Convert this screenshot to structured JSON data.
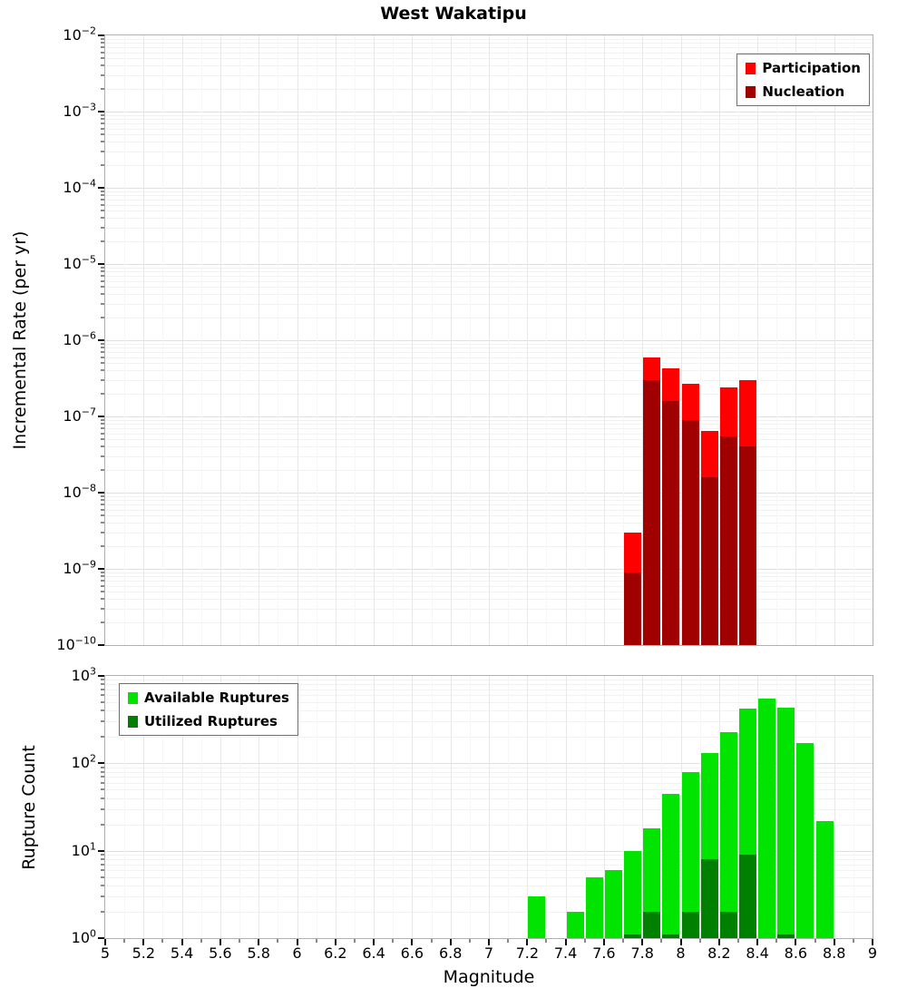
{
  "title": "West Wakatipu",
  "xlabel": "Magnitude",
  "colors": {
    "participation": "#ff0000",
    "nucleation": "#a00000",
    "available": "#00e400",
    "utilized": "#008000"
  },
  "chart_data": [
    {
      "type": "bar",
      "name": "incremental-rate",
      "ylabel": "Incremental Rate (per yr)",
      "x_range": [
        5,
        9
      ],
      "x_tick_step": 0.2,
      "x_tick_labels": [
        "5",
        "5.2",
        "5.4",
        "5.6",
        "5.8",
        "6",
        "6.2",
        "6.4",
        "6.6",
        "6.8",
        "7",
        "7.2",
        "7.4",
        "7.6",
        "7.8",
        "8",
        "8.2",
        "8.4",
        "8.6",
        "8.8",
        "9"
      ],
      "show_x_ticks": false,
      "show_x_tick_labels": false,
      "y_scale": "log",
      "y_exp_range": [
        -10,
        -2
      ],
      "y_tick_exponents": [
        -2,
        -3,
        -4,
        -5,
        -6,
        -7,
        -8,
        -9,
        -10
      ],
      "bin_width": 0.1,
      "grid": true,
      "legend": {
        "position": "top-right"
      },
      "series": [
        {
          "name": "Participation",
          "color": "#ff0000",
          "x": [
            7.75,
            7.85,
            7.95,
            8.05,
            8.15,
            8.25,
            8.35
          ],
          "y": [
            3e-09,
            6e-07,
            4.3e-07,
            2.7e-07,
            6.5e-08,
            2.4e-07,
            3e-07
          ]
        },
        {
          "name": "Nucleation",
          "color": "#a00000",
          "x": [
            7.75,
            7.85,
            7.95,
            8.05,
            8.15,
            8.25,
            8.35
          ],
          "y": [
            9e-10,
            3e-07,
            1.6e-07,
            9e-08,
            1.6e-08,
            5.5e-08,
            4e-08
          ]
        }
      ]
    },
    {
      "type": "bar",
      "name": "rupture-count",
      "ylabel": "Rupture Count",
      "x_range": [
        5,
        9
      ],
      "x_tick_step": 0.2,
      "x_tick_labels": [
        "5",
        "5.2",
        "5.4",
        "5.6",
        "5.8",
        "6",
        "6.2",
        "6.4",
        "6.6",
        "6.8",
        "7",
        "7.2",
        "7.4",
        "7.6",
        "7.8",
        "8",
        "8.2",
        "8.4",
        "8.6",
        "8.8",
        "9"
      ],
      "show_x_ticks": true,
      "show_x_tick_labels": true,
      "y_scale": "log",
      "y_exp_range": [
        0,
        3
      ],
      "y_tick_exponents": [
        3,
        2,
        1,
        0
      ],
      "bin_width": 0.1,
      "grid": true,
      "legend": {
        "position": "top-left"
      },
      "series": [
        {
          "name": "Available Ruptures",
          "color": "#00e400",
          "x": [
            7.25,
            7.45,
            7.55,
            7.65,
            7.75,
            7.85,
            7.95,
            8.05,
            8.15,
            8.25,
            8.35,
            8.45,
            8.55,
            8.65,
            8.75
          ],
          "y": [
            3,
            2,
            5,
            6,
            10,
            18,
            45,
            80,
            130,
            230,
            420,
            550,
            430,
            170,
            22
          ]
        },
        {
          "name": "Utilized Ruptures",
          "color": "#008000",
          "x": [
            7.75,
            7.85,
            7.95,
            8.05,
            8.15,
            8.25,
            8.35,
            8.55
          ],
          "y": [
            1,
            2,
            1,
            2,
            8,
            2,
            9,
            1
          ]
        }
      ]
    }
  ]
}
